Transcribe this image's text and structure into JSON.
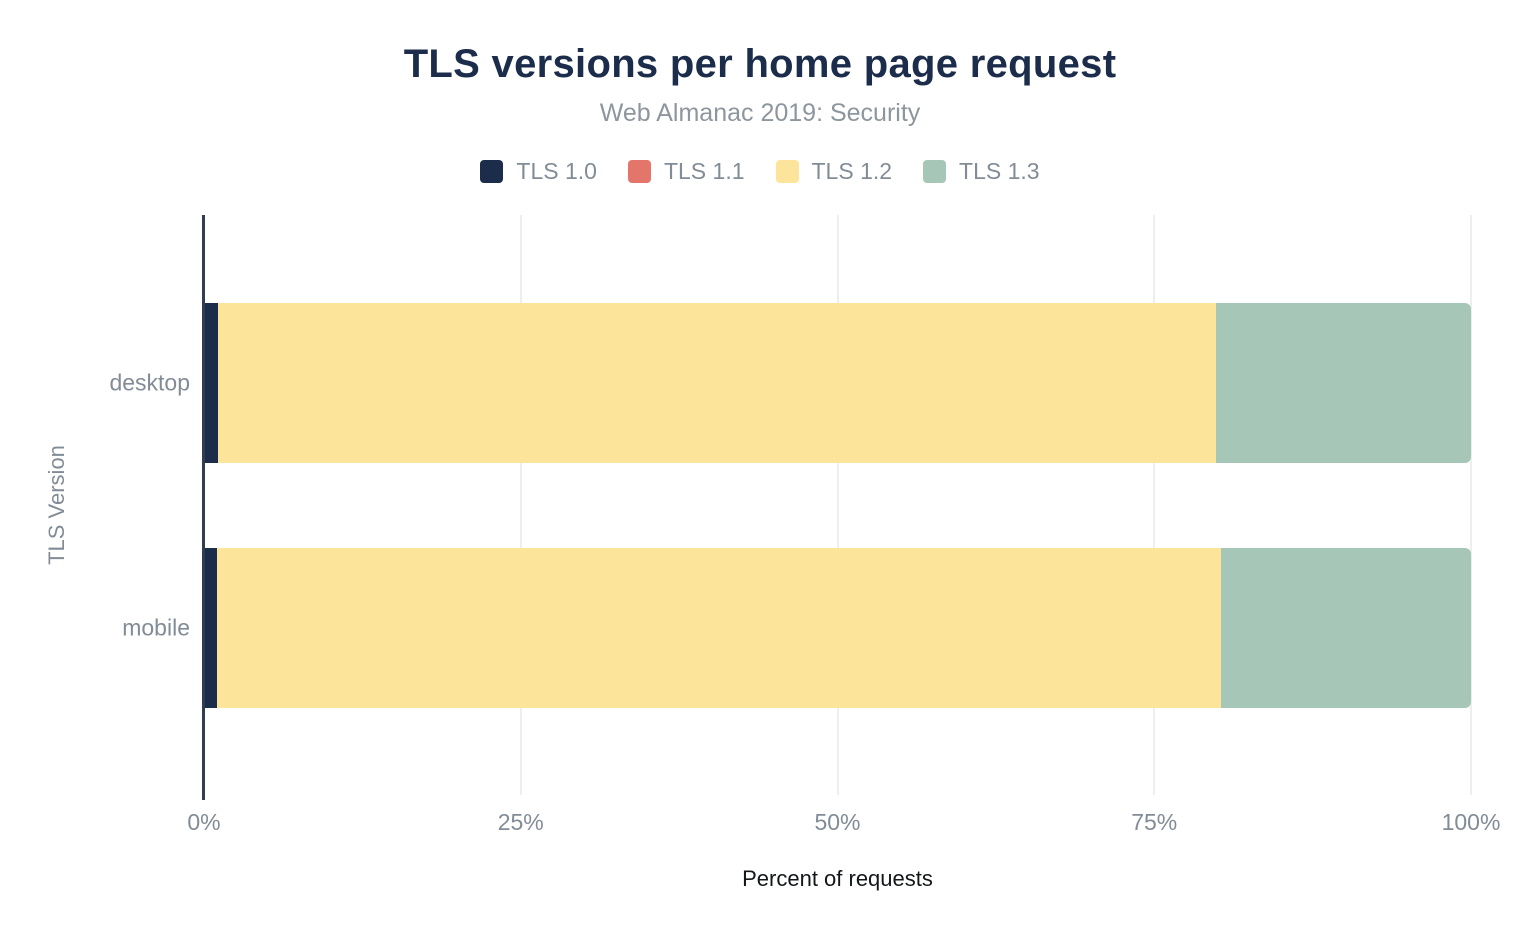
{
  "title": "TLS versions per home page request",
  "subtitle": "Web Almanac 2019: Security",
  "x_axis_label": "Percent of requests",
  "y_axis_label": "TLS Version",
  "colors": {
    "title": "#1b2d4b",
    "subtitle": "#8d969e",
    "axis_text": "#828c96",
    "axis_line": "#323d52",
    "gridline": "#eeeeee",
    "x_axis_label_color": "#14171a"
  },
  "legend": [
    "TLS 1.0",
    "TLS 1.1",
    "TLS 1.2",
    "TLS 1.3"
  ],
  "chart_data": {
    "type": "bar",
    "orientation": "horizontal",
    "stacked": true,
    "title": "TLS versions per home page request",
    "subtitle": "Web Almanac 2019: Security",
    "xlabel": "Percent of requests",
    "ylabel": "TLS Version",
    "categories": [
      "desktop",
      "mobile"
    ],
    "series": [
      {
        "name": "TLS 1.0",
        "color": "#1b2d4b",
        "values": [
          1.1,
          1.0
        ]
      },
      {
        "name": "TLS 1.1",
        "color": "#e4756b",
        "values": [
          0.0,
          0.0
        ]
      },
      {
        "name": "TLS 1.2",
        "color": "#fde49b",
        "values": [
          78.8,
          79.3
        ]
      },
      {
        "name": "TLS 1.3",
        "color": "#a6c7b7",
        "values": [
          20.1,
          19.7
        ]
      }
    ],
    "xlim": [
      0,
      100
    ],
    "xticks": [
      {
        "value": 0,
        "label": "0%"
      },
      {
        "value": 25,
        "label": "25%"
      },
      {
        "value": 50,
        "label": "50%"
      },
      {
        "value": 75,
        "label": "75%"
      },
      {
        "value": 100,
        "label": "100%"
      }
    ],
    "grid": true,
    "legend_position": "top"
  }
}
